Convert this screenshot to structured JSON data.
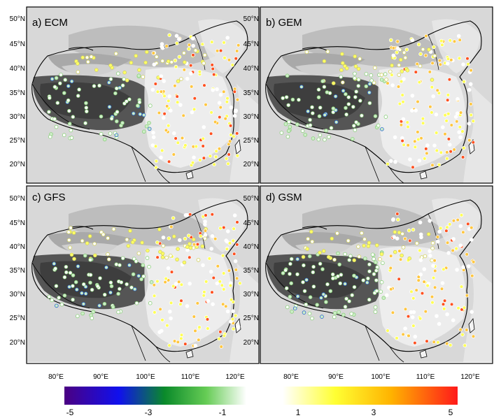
{
  "panels": [
    {
      "label": "a) ECM"
    },
    {
      "label": "b) GEM"
    },
    {
      "label": "c) GFS"
    },
    {
      "label": "d) GSM"
    }
  ],
  "lat_labels": [
    "50°N",
    "45°N",
    "40°N",
    "35°N",
    "30°N",
    "25°N",
    "20°N"
  ],
  "lon_labels": [
    "80°E",
    "90°E",
    "100°E",
    "110°E",
    "120°E"
  ],
  "colorbar": {
    "neg_ticks": [
      "-5",
      "-3",
      "-1"
    ],
    "pos_ticks": [
      "1",
      "3",
      "5"
    ],
    "neg_colors": [
      "#4b0082",
      "#0000ff",
      "#0a8a2a",
      "#66cc55",
      "#ffffff"
    ],
    "pos_colors": [
      "#ffffff",
      "#ffff33",
      "#ffb300",
      "#ff2020"
    ]
  }
}
